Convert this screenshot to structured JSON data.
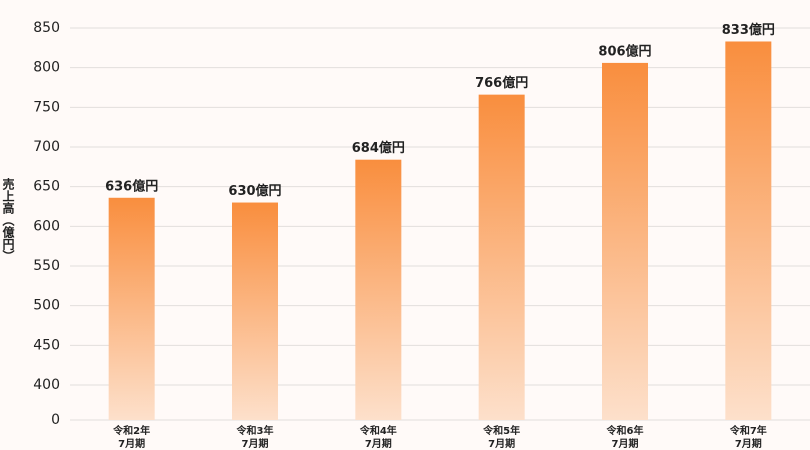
{
  "chart_data": {
    "type": "bar",
    "y_axis_label": "売上高（億円）",
    "categories": [
      "令和2年\n7月期",
      "令和3年\n7月期",
      "令和4年\n7月期",
      "令和5年\n7月期",
      "令和6年\n7月期",
      "令和7年\n7月期"
    ],
    "values": [
      636,
      630,
      684,
      766,
      806,
      833
    ],
    "value_labels": [
      "636億円",
      "630億円",
      "684億円",
      "766億円",
      "806億円",
      "833億円"
    ],
    "color": [
      "#f98e3e",
      "#fde0cb"
    ],
    "ylim": [
      0,
      850
    ],
    "yticks": [
      0,
      400,
      450,
      500,
      550,
      600,
      650,
      700,
      750,
      800,
      850
    ],
    "axis_break": true,
    "grid": true
  }
}
